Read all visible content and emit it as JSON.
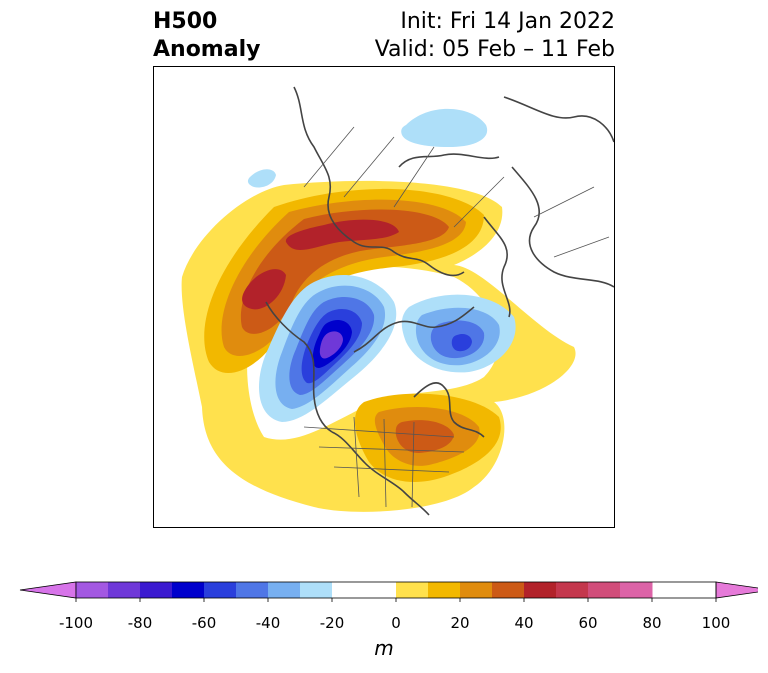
{
  "header": {
    "title_line1": "H500",
    "title_line2": "Anomaly",
    "init_text": "Init: Fri 14 Jan 2022",
    "valid_text": "Valid: 05 Feb – 11 Feb"
  },
  "map": {
    "projection": "north-polar-stereographic",
    "field": "500 hPa geopotential height anomaly",
    "features": [
      {
        "name": "positive-anomaly-north-pacific-alaska",
        "peak_m": 60
      },
      {
        "name": "positive-anomaly-eastern-us",
        "peak_m": 50
      },
      {
        "name": "negative-anomaly-western-canada",
        "peak_m": -70
      },
      {
        "name": "negative-anomaly-greenland-baffin",
        "peak_m": -50
      },
      {
        "name": "negative-anomaly-central-siberia",
        "peak_m": -20
      }
    ]
  },
  "colorbar": {
    "unit_label": "m",
    "min": -100,
    "max": 100,
    "step": 10,
    "extend": "both",
    "tick_labels": [
      "-100",
      "-80",
      "-60",
      "-40",
      "-20",
      "0",
      "20",
      "40",
      "60",
      "80",
      "100"
    ],
    "under_color": "#d774e9",
    "over_color": "#e67ad9",
    "colors": [
      "#d774e9",
      "#a358e2",
      "#6f38d8",
      "#3b1ad0",
      "#0000cc",
      "#2a3fdc",
      "#4f76e6",
      "#77aff0",
      "#aedff9",
      "#ffffff",
      "#ffffff",
      "#ffe14d",
      "#f2b800",
      "#e08c0e",
      "#cc5a16",
      "#b2222a",
      "#c4374d",
      "#d14d7a",
      "#dc63a7",
      "#e67ad9"
    ]
  }
}
